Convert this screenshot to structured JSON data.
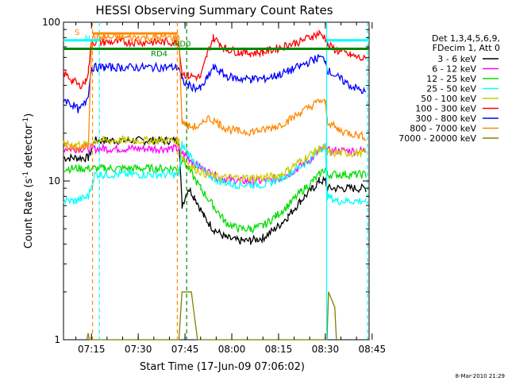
{
  "chart_data": {
    "type": "line",
    "title": "HESSI Observing Summary Count Rates",
    "xlabel": "Start Time (17-Jun-09 07:06:02)",
    "ylabel_main": "Count Rate (s",
    "ylabel_sup": "-1",
    "ylabel_end": " detector",
    "ylabel_sup2": "-1",
    "ylabel_close": ")",
    "yscale": "log",
    "ylim": [
      1,
      100
    ],
    "xlim_minutes": [
      0,
      98
    ],
    "xticks": [
      {
        "label": "07:15",
        "m": 8.97
      },
      {
        "label": "07:30",
        "m": 23.97
      },
      {
        "label": "07:45",
        "m": 38.97
      },
      {
        "label": "08:00",
        "m": 53.97
      },
      {
        "label": "08:15",
        "m": 68.97
      },
      {
        "label": "08:30",
        "m": 83.97
      },
      {
        "label": "08:45",
        "m": 98.97
      }
    ],
    "yticks": [
      {
        "label": "1",
        "v": 1
      },
      {
        "label": "10",
        "v": 10
      },
      {
        "label": "100",
        "v": 100
      }
    ],
    "legend_header": [
      "Det 1,3,4,5,6,9,",
      "FDecim 1, Att 0"
    ],
    "series": [
      {
        "name": "3 - 6 keV",
        "color": "#000000",
        "pts": [
          [
            0,
            14
          ],
          [
            8,
            14
          ],
          [
            10,
            18
          ],
          [
            13,
            18
          ],
          [
            37,
            18
          ],
          [
            38,
            7
          ],
          [
            40,
            9
          ],
          [
            42,
            8
          ],
          [
            45,
            6
          ],
          [
            48,
            5
          ],
          [
            52,
            4.4
          ],
          [
            56,
            4.2
          ],
          [
            60,
            4.2
          ],
          [
            64,
            4.4
          ],
          [
            68,
            5
          ],
          [
            72,
            6
          ],
          [
            76,
            7.5
          ],
          [
            80,
            9
          ],
          [
            82,
            10
          ],
          [
            84,
            10
          ],
          [
            84.6,
            9
          ],
          [
            97,
            9
          ]
        ]
      },
      {
        "name": "6 - 12 keV",
        "color": "#ff00ff",
        "pts": [
          [
            0,
            16
          ],
          [
            10,
            16
          ],
          [
            13,
            16
          ],
          [
            37,
            16
          ],
          [
            38,
            15
          ],
          [
            40,
            14
          ],
          [
            43,
            12.5
          ],
          [
            46,
            11.5
          ],
          [
            50,
            10.5
          ],
          [
            55,
            10
          ],
          [
            60,
            10
          ],
          [
            65,
            10
          ],
          [
            70,
            10.5
          ],
          [
            75,
            12
          ],
          [
            80,
            14
          ],
          [
            82,
            15.5
          ],
          [
            84,
            16
          ],
          [
            84.6,
            15.5
          ],
          [
            97,
            15.5
          ]
        ]
      },
      {
        "name": "12 - 25 keV",
        "color": "#00dd00",
        "pts": [
          [
            0,
            12
          ],
          [
            10,
            12
          ],
          [
            13,
            12
          ],
          [
            37,
            12
          ],
          [
            38,
            14
          ],
          [
            40,
            12
          ],
          [
            44,
            9
          ],
          [
            48,
            7
          ],
          [
            52,
            5.5
          ],
          [
            56,
            5
          ],
          [
            60,
            5
          ],
          [
            64,
            5.2
          ],
          [
            68,
            6
          ],
          [
            72,
            7
          ],
          [
            76,
            8.5
          ],
          [
            80,
            10
          ],
          [
            82,
            11
          ],
          [
            84,
            12
          ],
          [
            84.6,
            11
          ],
          [
            97,
            11
          ]
        ]
      },
      {
        "name": "25 - 50 keV",
        "color": "#00ffff",
        "pts": [
          [
            0,
            7.5
          ],
          [
            4,
            7.5
          ],
          [
            8,
            8
          ],
          [
            10,
            11
          ],
          [
            13,
            11
          ],
          [
            37,
            11
          ],
          [
            38,
            17
          ],
          [
            40,
            15
          ],
          [
            43,
            12.5
          ],
          [
            46,
            11
          ],
          [
            50,
            10
          ],
          [
            55,
            9.5
          ],
          [
            60,
            9.5
          ],
          [
            65,
            9.5
          ],
          [
            70,
            10.5
          ],
          [
            75,
            12
          ],
          [
            80,
            14
          ],
          [
            82,
            16
          ],
          [
            84,
            16.5
          ],
          [
            84.6,
            8
          ],
          [
            88,
            7.5
          ],
          [
            97,
            7.5
          ]
        ]
      },
      {
        "name": "50 - 100 keV",
        "color": "#cccc00",
        "pts": [
          [
            0,
            17
          ],
          [
            4,
            17
          ],
          [
            8,
            17
          ],
          [
            10,
            18
          ],
          [
            13,
            18
          ],
          [
            37,
            18
          ],
          [
            38,
            14
          ],
          [
            42,
            12
          ],
          [
            46,
            11
          ],
          [
            50,
            10.5
          ],
          [
            55,
            10.5
          ],
          [
            60,
            10.5
          ],
          [
            65,
            10.5
          ],
          [
            70,
            11
          ],
          [
            75,
            13
          ],
          [
            80,
            15
          ],
          [
            82,
            16
          ],
          [
            84,
            16
          ],
          [
            84.6,
            15
          ],
          [
            97,
            15
          ]
        ]
      },
      {
        "name": "100 - 300 keV",
        "color": "#ff0000",
        "pts": [
          [
            0,
            48
          ],
          [
            3,
            43
          ],
          [
            5,
            40
          ],
          [
            7,
            42
          ],
          [
            8,
            50
          ],
          [
            9,
            75
          ],
          [
            13,
            75
          ],
          [
            37,
            75
          ],
          [
            38,
            48
          ],
          [
            40,
            46
          ],
          [
            44,
            45
          ],
          [
            46,
            62
          ],
          [
            48,
            80
          ],
          [
            50,
            74
          ],
          [
            52,
            68
          ],
          [
            56,
            65
          ],
          [
            60,
            64
          ],
          [
            64,
            65
          ],
          [
            68,
            68
          ],
          [
            72,
            72
          ],
          [
            76,
            76
          ],
          [
            80,
            82
          ],
          [
            82,
            85
          ],
          [
            84,
            80
          ],
          [
            84.6,
            72
          ],
          [
            88,
            66
          ],
          [
            92,
            62
          ],
          [
            97,
            58
          ]
        ]
      },
      {
        "name": "300 - 800 keV",
        "color": "#0000ff",
        "pts": [
          [
            0,
            33
          ],
          [
            3,
            30
          ],
          [
            5,
            28
          ],
          [
            7,
            31
          ],
          [
            8,
            36
          ],
          [
            9,
            52
          ],
          [
            13,
            52
          ],
          [
            37,
            52
          ],
          [
            38,
            43
          ],
          [
            40,
            40
          ],
          [
            44,
            38
          ],
          [
            46,
            44
          ],
          [
            48,
            52
          ],
          [
            50,
            49
          ],
          [
            52,
            46
          ],
          [
            56,
            44
          ],
          [
            60,
            44
          ],
          [
            64,
            44
          ],
          [
            68,
            46
          ],
          [
            72,
            49
          ],
          [
            76,
            53
          ],
          [
            80,
            58
          ],
          [
            82,
            60
          ],
          [
            84,
            58
          ],
          [
            84.6,
            50
          ],
          [
            88,
            45
          ],
          [
            92,
            40
          ],
          [
            97,
            36
          ]
        ]
      },
      {
        "name": "800 - 7000 keV",
        "color": "#ff8800",
        "pts": [
          [
            0,
            17
          ],
          [
            3,
            16
          ],
          [
            5,
            16
          ],
          [
            7,
            16.5
          ],
          [
            8,
            17
          ],
          [
            9,
            80
          ],
          [
            13,
            80
          ],
          [
            37,
            80
          ],
          [
            38,
            24
          ],
          [
            40,
            22
          ],
          [
            44,
            22
          ],
          [
            46,
            25
          ],
          [
            48,
            24
          ],
          [
            50,
            23
          ],
          [
            52,
            21.5
          ],
          [
            56,
            20.5
          ],
          [
            60,
            20.5
          ],
          [
            64,
            21
          ],
          [
            68,
            22
          ],
          [
            72,
            24
          ],
          [
            76,
            27
          ],
          [
            80,
            30
          ],
          [
            82,
            32
          ],
          [
            84,
            31
          ],
          [
            84.6,
            24
          ],
          [
            88,
            21
          ],
          [
            92,
            20
          ],
          [
            97,
            19
          ]
        ]
      },
      {
        "name": "7000 - 20000 keV",
        "color": "#808000",
        "pts": [
          [
            7.5,
            1
          ],
          [
            7.9,
            1.1
          ],
          [
            8.3,
            1
          ],
          [
            37,
            1
          ],
          [
            38,
            2
          ],
          [
            41,
            2
          ],
          [
            42,
            1.4
          ],
          [
            43,
            1
          ],
          [
            84.5,
            1
          ],
          [
            85,
            2
          ],
          [
            87,
            1.6
          ],
          [
            87.5,
            1
          ]
        ]
      }
    ],
    "annotations": {
      "S": {
        "label": "S",
        "color": "#ff8800"
      },
      "N": {
        "label": "N",
        "color": "#00ffff"
      },
      "RD0": {
        "label": "RD0",
        "color": "#008800"
      },
      "RD4": {
        "label": "RD4",
        "color": "#008800"
      }
    },
    "vlines": [
      {
        "m": 9.3,
        "color": "#ff8800",
        "style": "dashed"
      },
      {
        "m": 11.5,
        "color": "#00ffff",
        "style": "dashed"
      },
      {
        "m": 36.5,
        "color": "#ff8800",
        "style": "dashed"
      },
      {
        "m": 39.5,
        "color": "#008800",
        "style": "dashed"
      },
      {
        "m": 84.4,
        "color": "#00ffff",
        "style": "solid"
      },
      {
        "m": 97.5,
        "color": "#00ffff",
        "style": "dashed"
      }
    ],
    "hbars": [
      {
        "name": "S",
        "m0": 9.3,
        "m1": 36.5,
        "v": 85,
        "color": "#ff8800"
      },
      {
        "name": "N",
        "m0": 0,
        "m1": 11.5,
        "v": 77,
        "color": "#00ffff"
      },
      {
        "name": "N",
        "m0": 84.4,
        "m1": 98,
        "v": 77,
        "color": "#00ffff"
      },
      {
        "name": "RD0",
        "m0": 0,
        "m1": 98,
        "v": 68,
        "color": "#008800"
      }
    ]
  },
  "footer": {
    "timestamp": "8-Mar-2010 21:29"
  }
}
